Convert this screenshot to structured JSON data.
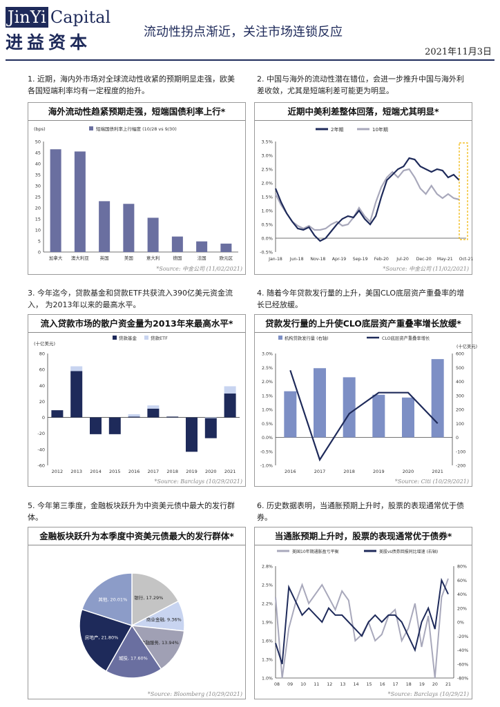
{
  "header": {
    "logo_en_1": "JinYi",
    "logo_en_2": "Capital",
    "logo_cn": "进益资本",
    "title": "流动性拐点渐近，关注市场连锁反应",
    "date": "2021年11月3日"
  },
  "colors": {
    "navy": "#1e2a5a",
    "slate": "#6a6fa0",
    "light": "#c8d4f0",
    "grey": "#a8a8bb"
  },
  "sections": [
    {
      "text": "1. 近期，海内外市场对全球流动性收紧的预期明显走强，欧美各国短端利率均有一定程度的抬升。",
      "panel_title": "海外流动性趋紧预期走强，短端国债利率上行*",
      "source": "*Source: 中金公司 (11/02/2021)"
    },
    {
      "text": "2. 中国与海外的流动性潜在错位，会进一步推升中国与海外利差收敛，尤其是短端利差可能更为明显。",
      "panel_title": "近期中美利差整体回落，短端尤其明显*",
      "source": "*Source: 中金公司 (11/02/2021)"
    },
    {
      "text": "3. 今年迄今，贷款基金和贷款ETF共获流入390亿美元资金流入， 为2013年以来的最高水平。",
      "panel_title": "流入贷款市场的散户资金量为2013年来最高水平*",
      "source": "*Source: Barclays (10/29/2021)"
    },
    {
      "text": "4. 随着今年贷款发行量的上升，美国CLO底层资产重叠率的增长已经放缓。",
      "panel_title": "贷款发行量的上升使CLO底层资产重叠率增长放缓*",
      "source": "*Source: Citi (10/29/2021)"
    },
    {
      "text": "5. 今年第三季度，金融板块跃升为中资美元债中最大的发行群体。",
      "panel_title": "金融板块跃升为本季度中资美元债最大的发行群体*",
      "source": "*Source: Bloomberg (10/29/2021)"
    },
    {
      "text": "6. 历史数据表明，当通胀预期上升时，股票的表现通常优于债券。",
      "panel_title": "当通胀预期上升时，股票的表现通常优于债券*",
      "source": "*Source: Barclays (10/29/21)"
    }
  ],
  "chart_data": [
    {
      "type": "bar",
      "unit_label": "(bps)",
      "legend": [
        "短端国债利率上行幅度 (10/28 vs 9/30)"
      ],
      "categories": [
        "加拿大",
        "澳大利亚",
        "英国",
        "美国",
        "意大利",
        "德国",
        "法国",
        "欧元区"
      ],
      "values": [
        46.5,
        45.5,
        23,
        21.8,
        15.5,
        7,
        4.8,
        3.8
      ],
      "ylim": [
        0,
        50
      ],
      "yticks": [
        "0",
        "5",
        "10",
        "15",
        "20",
        "25",
        "30",
        "35",
        "40",
        "45",
        "50"
      ]
    },
    {
      "type": "line",
      "legend": [
        "2年期",
        "10年期"
      ],
      "xticks": [
        "Jan-18",
        "Jun-18",
        "Nov-18",
        "Apr-19",
        "Sep-19",
        "Feb-20",
        "Jul-20",
        "Dec-20",
        "May-21",
        "Oct-21"
      ],
      "yticks": [
        "-0.5%",
        "0.0%",
        "0.5%",
        "1.0%",
        "1.5%",
        "2.0%",
        "2.5%",
        "3.0%",
        "3.5%"
      ],
      "ylim": [
        -0.5,
        3.5
      ],
      "series": [
        {
          "name": "2年期",
          "values": [
            1.8,
            1.3,
            0.9,
            0.6,
            0.35,
            0.3,
            0.4,
            0.1,
            -0.1,
            0.0,
            0.25,
            0.5,
            0.7,
            0.8,
            0.75,
            1.0,
            0.7,
            0.5,
            0.8,
            1.5,
            2.1,
            2.3,
            2.5,
            2.6,
            2.9,
            2.85,
            2.6,
            2.5,
            2.4,
            2.5,
            2.45,
            2.2,
            2.3,
            2.1
          ]
        },
        {
          "name": "10年期",
          "values": [
            1.6,
            1.2,
            0.9,
            0.6,
            0.45,
            0.35,
            0.45,
            0.3,
            0.3,
            0.35,
            0.5,
            0.6,
            0.45,
            0.5,
            0.75,
            1.1,
            0.8,
            0.6,
            1.3,
            1.85,
            2.2,
            2.4,
            2.2,
            2.45,
            2.5,
            2.2,
            1.8,
            1.6,
            1.9,
            1.6,
            1.45,
            1.6,
            1.45,
            1.4
          ]
        }
      ]
    },
    {
      "type": "bar",
      "unit_label": "(十亿美元)",
      "legend": [
        "贷款基金",
        "贷款ETF"
      ],
      "categories": [
        "2012",
        "2013",
        "2014",
        "2015",
        "2016",
        "2017",
        "2018",
        "2019",
        "2020",
        "2021"
      ],
      "ylim": [
        -60,
        80
      ],
      "yticks": [
        "-60",
        "-40",
        "-20",
        "0",
        "20",
        "40",
        "60",
        "80"
      ],
      "series": [
        {
          "name": "贷款基金",
          "values": [
            9,
            58,
            -21,
            -21,
            1,
            11,
            1,
            -43,
            -26,
            30
          ]
        },
        {
          "name": "贷款ETF",
          "values": [
            0,
            6,
            0,
            0,
            3,
            4,
            0,
            0,
            -1,
            9
          ]
        }
      ]
    },
    {
      "type": "bar",
      "unit_label": "(十亿美元)",
      "legend": [
        "机构贷款发行量 (右轴)",
        "CLO底层资产重叠率增长"
      ],
      "categories": [
        "2016",
        "2017",
        "2018",
        "2019",
        "2020",
        "2021"
      ],
      "left_yticks": [
        "-1.0%",
        "-0.5%",
        "0.0%",
        "0.5%",
        "1.0%",
        "1.5%",
        "2.0%",
        "2.5%",
        "3.0%"
      ],
      "right_yticks": [
        "-200",
        "-100",
        "0",
        "100",
        "200",
        "300",
        "400",
        "500",
        "600"
      ],
      "series": [
        {
          "name": "机构贷款发行量 (右轴)",
          "values": [
            330,
            495,
            430,
            305,
            285,
            560
          ]
        },
        {
          "name": "CLO底层资产重叠率增长",
          "values": [
            2.4,
            -0.8,
            0.85,
            1.6,
            1.6,
            0.5
          ]
        }
      ]
    },
    {
      "type": "pie",
      "slices": [
        {
          "label": "银行",
          "value": 17.29,
          "text": "银行, 17.29%"
        },
        {
          "label": "商业金融",
          "value": 9.36,
          "text": "商业金融, 9.36%"
        },
        {
          "label": "金融服务",
          "value": 13.94,
          "text": "金融服务, 13.94%"
        },
        {
          "label": "城投",
          "value": 17.6,
          "text": "城投, 17.60%"
        },
        {
          "label": "房地产",
          "value": 21.8,
          "text": "房地产, 21.80%"
        },
        {
          "label": "其他",
          "value": 20.01,
          "text": "其他, 20.01%"
        }
      ]
    },
    {
      "type": "line",
      "legend": [
        "美国10年期通胀盈亏平衡",
        "美股vs债券回报同比增速 (右轴)"
      ],
      "xticks": [
        "08",
        "09",
        "10",
        "11",
        "12",
        "13",
        "14",
        "15",
        "16",
        "17",
        "18",
        "19",
        "20",
        "21"
      ],
      "left_yticks": [
        "1.0%",
        "1.3%",
        "1.6%",
        "1.9%",
        "2.2%",
        "2.5%",
        "2.8%"
      ],
      "right_yticks": [
        "-80%",
        "-60%",
        "-40%",
        "-20%",
        "0%",
        "20%",
        "40%",
        "60%",
        "80%"
      ],
      "series": [
        {
          "name": "美国10年期通胀盈亏平衡",
          "values": [
            2.3,
            1.0,
            1.8,
            2.2,
            2.5,
            2.2,
            2.35,
            2.5,
            2.3,
            2.1,
            2.4,
            2.25,
            1.6,
            1.7,
            1.9,
            1.6,
            1.7,
            2.0,
            2.1,
            1.6,
            1.8,
            2.2,
            1.5,
            2.0,
            1.0,
            2.3,
            2.6
          ]
        },
        {
          "name": "美股vs债券回报同比增速 (右轴)",
          "values": [
            -30,
            -60,
            50,
            30,
            10,
            20,
            10,
            0,
            20,
            10,
            10,
            0,
            -10,
            -20,
            0,
            10,
            0,
            10,
            10,
            0,
            -20,
            -40,
            0,
            20,
            -10,
            60,
            40
          ]
        }
      ]
    }
  ]
}
